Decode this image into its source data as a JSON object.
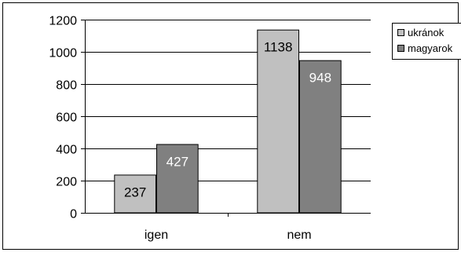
{
  "chart_data": {
    "type": "bar",
    "categories": [
      "igen",
      "nem"
    ],
    "series": [
      {
        "name": "ukránok",
        "values": [
          237,
          1138
        ],
        "color": "#c0c0c0"
      },
      {
        "name": "magyarok",
        "values": [
          427,
          948
        ],
        "color": "#808080"
      }
    ],
    "ylim": [
      0,
      1200
    ],
    "yticks": [
      0,
      200,
      400,
      600,
      800,
      1000,
      1200
    ],
    "ytick_labels": [
      "0",
      "200",
      "400",
      "600",
      "800",
      "1000",
      "1200"
    ],
    "grid": true,
    "legend_position": "right",
    "data_labels": true,
    "title": "",
    "xlabel": "",
    "ylabel": ""
  }
}
